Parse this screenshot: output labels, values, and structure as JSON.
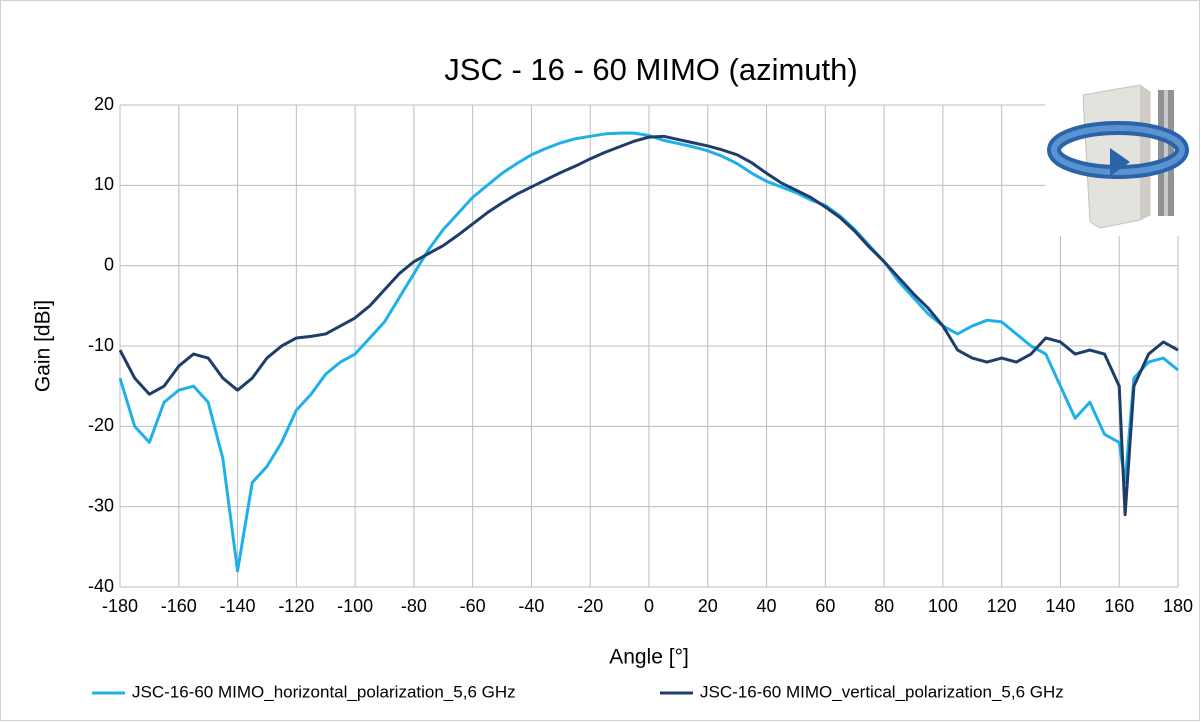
{
  "chart_data": {
    "type": "line",
    "title": "JSC - 16 - 60 MIMO (azimuth)",
    "x_label": "Angle [°]",
    "y_label": "Gain [dBi]",
    "x": [
      -180,
      -175,
      -170,
      -165,
      -160,
      -155,
      -150,
      -145,
      -140,
      -135,
      -130,
      -125,
      -120,
      -115,
      -110,
      -105,
      -100,
      -95,
      -90,
      -85,
      -80,
      -75,
      -70,
      -65,
      -60,
      -55,
      -50,
      -45,
      -40,
      -35,
      -30,
      -25,
      -20,
      -15,
      -10,
      -5,
      0,
      5,
      10,
      15,
      20,
      25,
      30,
      35,
      40,
      45,
      50,
      55,
      60,
      65,
      70,
      75,
      80,
      85,
      90,
      95,
      100,
      105,
      110,
      115,
      120,
      125,
      130,
      135,
      140,
      145,
      150,
      155,
      160,
      162,
      165,
      170,
      175,
      180
    ],
    "series": [
      {
        "name": "JSC-16-60 MIMO_horizontal_polarization_5,6 GHz",
        "color": "#1fb0ea",
        "values": [
          -14,
          -20,
          -22,
          -17,
          -15.5,
          -15,
          -17,
          -24,
          -38,
          -27,
          -25,
          -22,
          -18,
          -16,
          -13.5,
          -12,
          -11,
          -9,
          -7,
          -4,
          -1,
          2,
          4.5,
          6.5,
          8.5,
          10,
          11.5,
          12.7,
          13.8,
          14.6,
          15.3,
          15.8,
          16.1,
          16.4,
          16.5,
          16.5,
          16.2,
          15.6,
          15.2,
          14.8,
          14.3,
          13.6,
          12.7,
          11.5,
          10.5,
          9.8,
          9.1,
          8.2,
          7.5,
          6.2,
          4.5,
          2.5,
          0.5,
          -2,
          -4,
          -6,
          -7.5,
          -8.5,
          -7.5,
          -6.8,
          -7,
          -8.5,
          -10,
          -11,
          -15,
          -19,
          -17,
          -21,
          -22,
          -27,
          -14,
          -12,
          -11.5,
          -13
        ]
      },
      {
        "name": "JSC-16-60 MIMO_vertical_polarization_5,6 GHz",
        "color": "#1f3d6b",
        "values": [
          -10.5,
          -14,
          -16,
          -15,
          -12.5,
          -11,
          -11.5,
          -14,
          -15.5,
          -14,
          -11.5,
          -10,
          -9,
          -8.8,
          -8.5,
          -7.5,
          -6.5,
          -5,
          -3,
          -1,
          0.5,
          1.5,
          2.5,
          3.8,
          5.2,
          6.6,
          7.8,
          8.9,
          9.8,
          10.7,
          11.6,
          12.4,
          13.3,
          14.1,
          14.8,
          15.5,
          16,
          16.1,
          15.7,
          15.3,
          14.9,
          14.4,
          13.8,
          12.8,
          11.5,
          10.3,
          9.4,
          8.5,
          7.3,
          6,
          4.3,
          2.3,
          0.5,
          -1.5,
          -3.5,
          -5.3,
          -7.5,
          -10.5,
          -11.5,
          -12,
          -11.5,
          -12,
          -11,
          -9,
          -9.5,
          -11,
          -10.5,
          -11,
          -15,
          -31,
          -15,
          -11,
          -9.5,
          -10.5
        ]
      }
    ],
    "xlim": [
      -180,
      180
    ],
    "ylim": [
      -40,
      20
    ],
    "xticks": [
      -180,
      -160,
      -140,
      -120,
      -100,
      -80,
      -60,
      -40,
      -20,
      0,
      20,
      40,
      60,
      80,
      100,
      120,
      140,
      160,
      180
    ],
    "yticks": [
      -40,
      -30,
      -20,
      -10,
      0,
      10,
      20
    ],
    "grid": true,
    "legend": "bottom"
  }
}
